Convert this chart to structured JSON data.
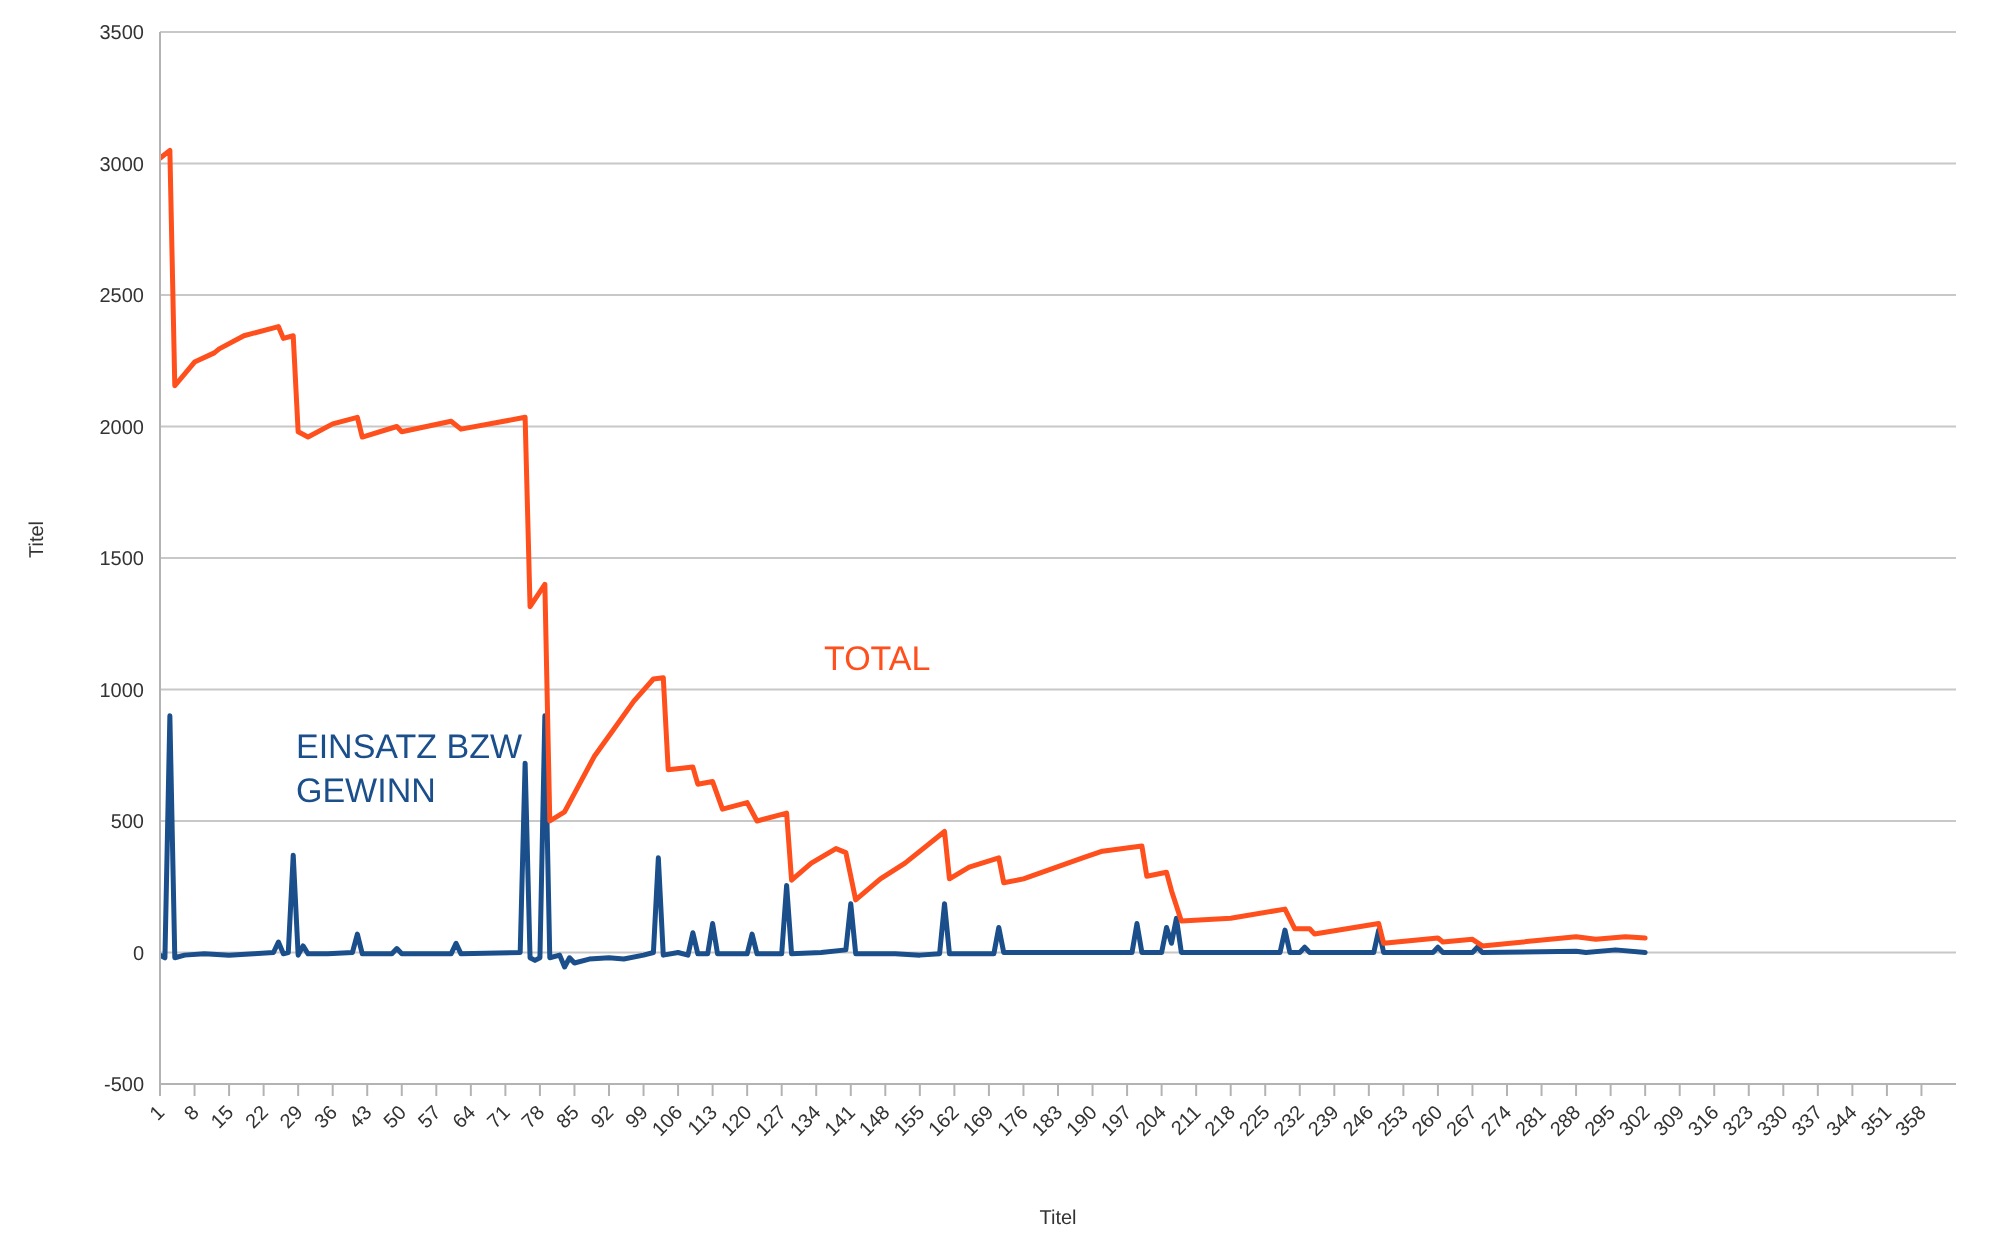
{
  "chart_data": {
    "type": "line",
    "xlabel": "Titel",
    "ylabel": "Titel",
    "xlim": [
      1,
      365
    ],
    "xticks": [
      1,
      8,
      15,
      22,
      29,
      36,
      43,
      50,
      57,
      64,
      71,
      78,
      85,
      92,
      99,
      106,
      113,
      120,
      127,
      134,
      141,
      148,
      155,
      162,
      169,
      176,
      183,
      190,
      197,
      204,
      211,
      218,
      225,
      232,
      239,
      246,
      253,
      260,
      267,
      274,
      281,
      288,
      295,
      302,
      309,
      316,
      323,
      330,
      337,
      344,
      351,
      358
    ],
    "ylim": [
      -500,
      3500
    ],
    "yticks": [
      -500,
      0,
      500,
      1000,
      1500,
      2000,
      2500,
      3000,
      3500
    ],
    "grid": "y",
    "legend": false,
    "marker": "none",
    "line_style": "solid",
    "series": [
      {
        "name": "EINSATZ BZW GEWINN",
        "color": "#1a4f8b",
        "x": [
          1,
          2,
          3,
          4,
          6,
          10,
          15,
          20,
          24,
          25,
          26,
          27,
          28,
          29,
          30,
          31,
          35,
          40,
          41,
          42,
          48,
          49,
          50,
          60,
          61,
          62,
          74,
          75,
          76,
          77,
          78,
          79,
          80,
          82,
          83,
          84,
          85,
          88,
          92,
          95,
          99,
          101,
          102,
          103,
          106,
          108,
          109,
          110,
          112,
          113,
          114,
          120,
          121,
          122,
          127,
          128,
          129,
          135,
          140,
          141,
          142,
          150,
          155,
          159,
          160,
          161,
          170,
          171,
          172,
          198,
          199,
          200,
          204,
          205,
          206,
          207,
          208,
          228,
          229,
          230,
          232,
          233,
          234,
          247,
          248,
          249,
          259,
          260,
          261,
          267,
          268,
          269,
          288,
          290,
          296,
          302
        ],
        "values": [
          -10,
          -20,
          900,
          -20,
          -10,
          -5,
          -10,
          -5,
          0,
          40,
          -5,
          0,
          370,
          -10,
          25,
          -5,
          -5,
          0,
          70,
          -5,
          -5,
          15,
          -5,
          -5,
          35,
          -5,
          0,
          720,
          -20,
          -30,
          -20,
          900,
          -20,
          -10,
          -55,
          -20,
          -40,
          -25,
          -20,
          -25,
          -10,
          0,
          360,
          -10,
          0,
          -10,
          75,
          -5,
          -5,
          110,
          -5,
          -5,
          70,
          -5,
          -5,
          255,
          -5,
          0,
          10,
          185,
          -5,
          -5,
          -10,
          -5,
          185,
          -5,
          -5,
          95,
          0,
          0,
          110,
          0,
          0,
          95,
          35,
          130,
          0,
          0,
          85,
          0,
          0,
          20,
          0,
          0,
          85,
          0,
          0,
          20,
          0,
          0,
          20,
          0,
          5,
          0,
          10,
          0
        ]
      },
      {
        "name": "TOTAL",
        "color": "#ff4f1c",
        "x": [
          1,
          3,
          4,
          8,
          12,
          13,
          18,
          25,
          26,
          28,
          29,
          31,
          36,
          41,
          42,
          49,
          50,
          60,
          62,
          75,
          76,
          79,
          80,
          83,
          85,
          89,
          93,
          97,
          101,
          103,
          104,
          109,
          110,
          113,
          115,
          120,
          122,
          128,
          129,
          133,
          138,
          140,
          142,
          147,
          152,
          160,
          161,
          165,
          171,
          172,
          176,
          188,
          192,
          200,
          201,
          205,
          206,
          208,
          218,
          229,
          231,
          234,
          235,
          248,
          249,
          260,
          261,
          267,
          269,
          288,
          292,
          298,
          302
        ],
        "values": [
          3020,
          3050,
          2155,
          2245,
          2280,
          2295,
          2345,
          2380,
          2335,
          2345,
          1980,
          1960,
          2010,
          2035,
          1960,
          2000,
          1980,
          2020,
          1990,
          2035,
          1315,
          1400,
          500,
          535,
          605,
          745,
          850,
          955,
          1040,
          1045,
          695,
          705,
          640,
          650,
          545,
          570,
          500,
          530,
          275,
          340,
          395,
          380,
          200,
          280,
          340,
          460,
          280,
          325,
          360,
          265,
          280,
          360,
          385,
          405,
          290,
          305,
          235,
          120,
          130,
          165,
          90,
          90,
          70,
          110,
          35,
          55,
          40,
          50,
          25,
          60,
          50,
          60,
          55
        ]
      }
    ]
  }
}
